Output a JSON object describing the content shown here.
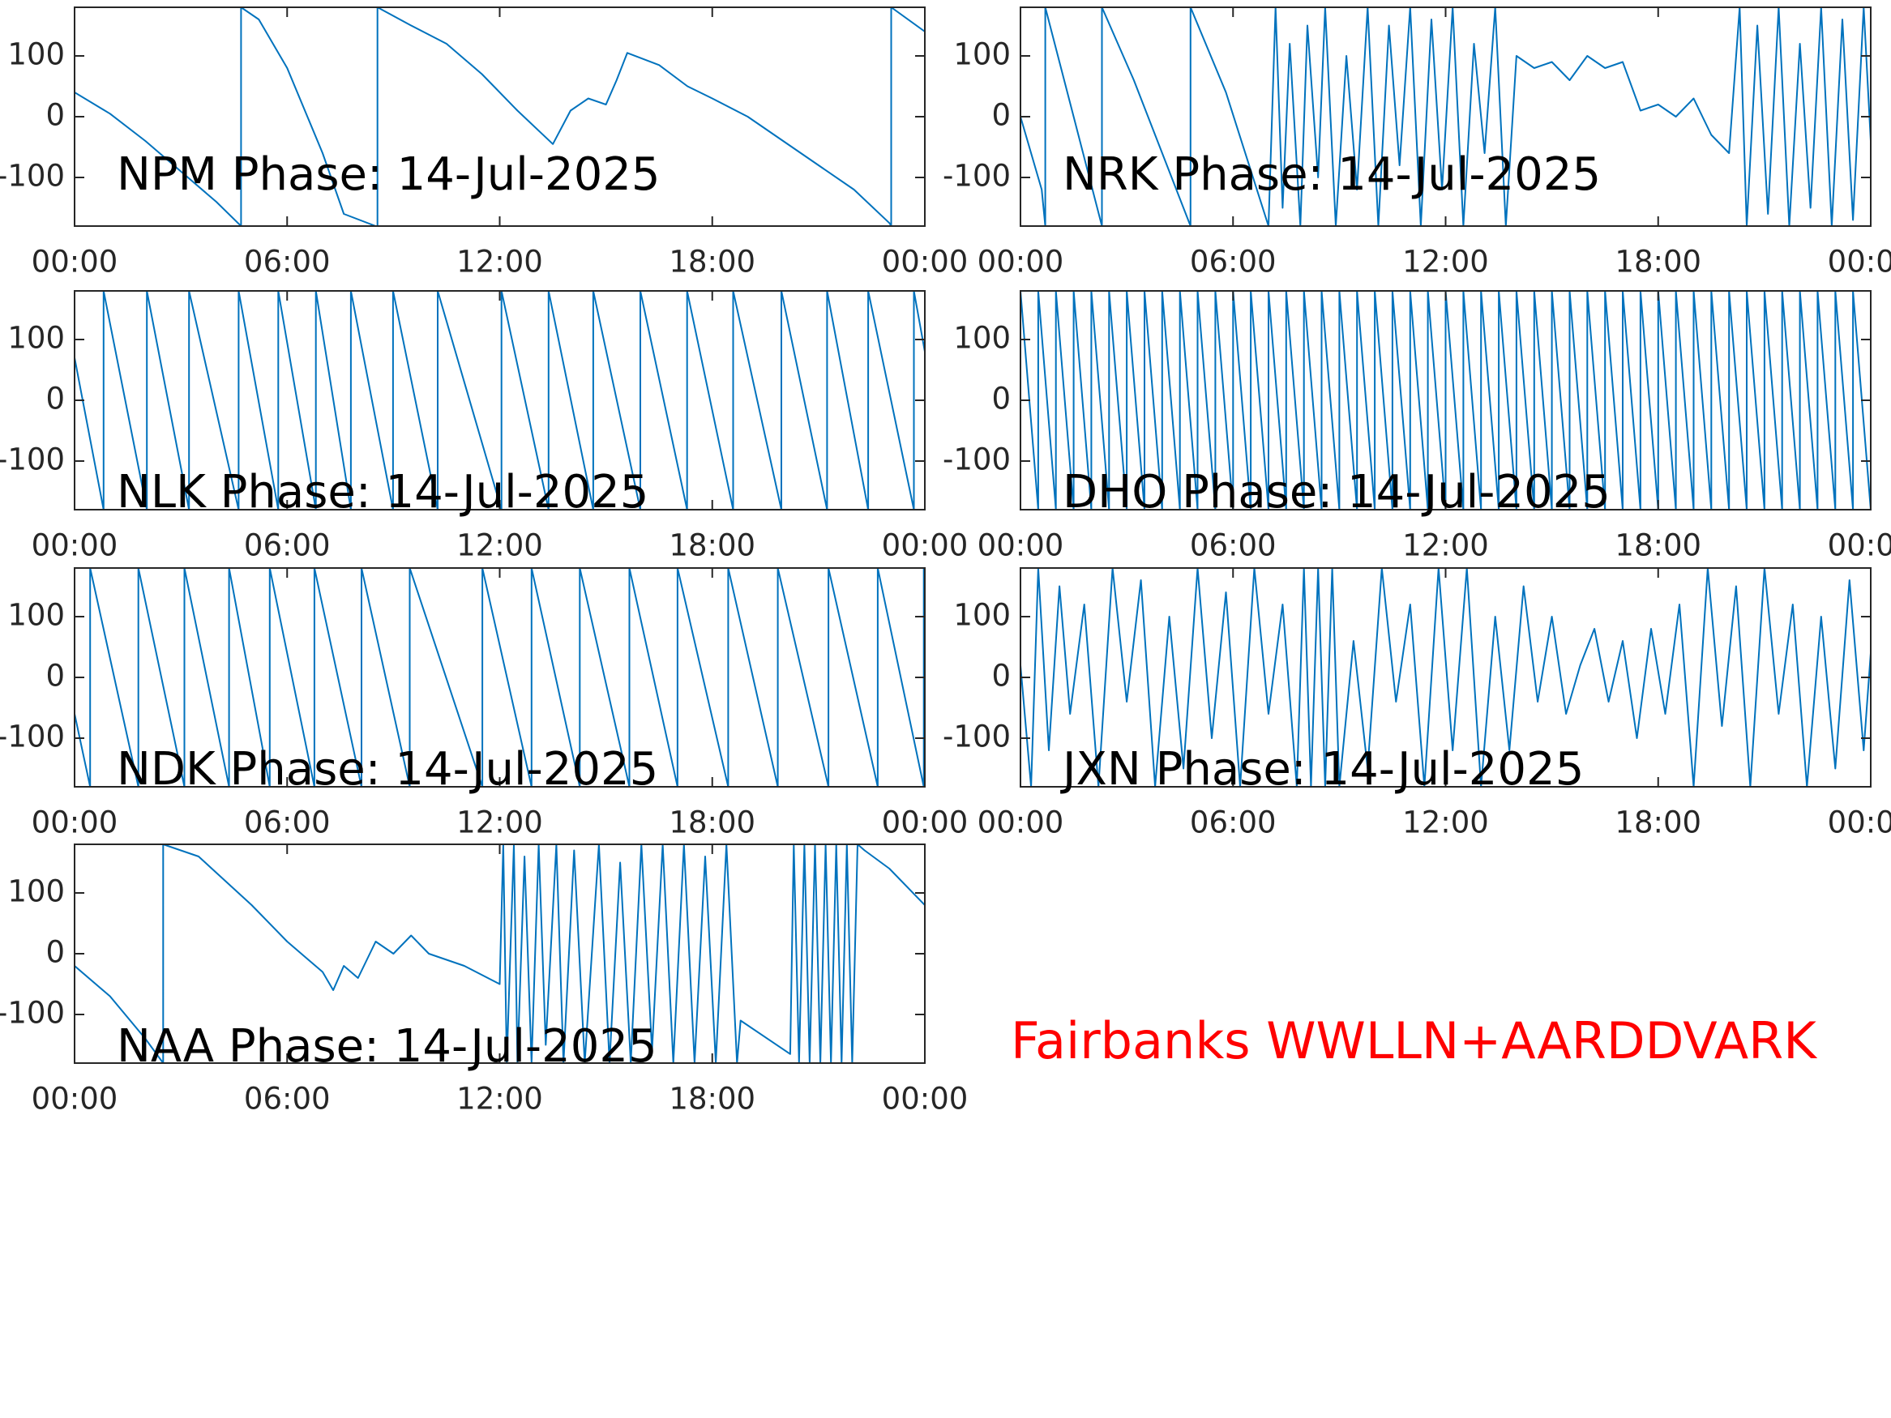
{
  "chart_data": [
    {
      "type": "line",
      "title": "NPM Phase: 14-Jul-2025",
      "color": "#0072bd",
      "xlim": [
        0,
        24
      ],
      "ylim": [
        -180,
        180
      ],
      "yticks": [
        -100,
        0,
        100
      ],
      "xticks": [
        {
          "value": 0,
          "label": "00:00"
        },
        {
          "value": 6,
          "label": "06:00"
        },
        {
          "value": 12,
          "label": "12:00"
        },
        {
          "value": 18,
          "label": "18:00"
        },
        {
          "value": 24,
          "label": "00:00"
        }
      ],
      "x": [
        0,
        1,
        2,
        3,
        4,
        4.7,
        4.7,
        5.2,
        6,
        7,
        7.6,
        8.5,
        8.55,
        8.55,
        9.5,
        10.5,
        11.5,
        12.5,
        13.5,
        14,
        14.5,
        15,
        15.3,
        15.6,
        16.5,
        17.3,
        18,
        19,
        20,
        21,
        22,
        23,
        23.05,
        23.05,
        24
      ],
      "values": [
        40,
        5,
        -40,
        -90,
        -140,
        -180,
        180,
        160,
        80,
        -60,
        -160,
        -180,
        -180,
        180,
        150,
        120,
        70,
        10,
        -45,
        10,
        30,
        20,
        60,
        105,
        85,
        50,
        30,
        0,
        -40,
        -80,
        -120,
        -175,
        -180,
        180,
        140
      ]
    },
    {
      "type": "line",
      "title": "NRK Phase: 14-Jul-2025",
      "color": "#0072bd",
      "xlim": [
        0,
        24
      ],
      "ylim": [
        -180,
        180
      ],
      "yticks": [
        -100,
        0,
        100
      ],
      "xticks": [
        {
          "value": 0,
          "label": "00:00"
        },
        {
          "value": 6,
          "label": "06:00"
        },
        {
          "value": 12,
          "label": "12:00"
        },
        {
          "value": 18,
          "label": "18:00"
        },
        {
          "value": 24,
          "label": "00:00"
        }
      ],
      "x": [
        0,
        0.6,
        0.7,
        0.7,
        1.5,
        2.3,
        2.3,
        3.2,
        4.8,
        4.8,
        5.8,
        7.0,
        7.2,
        7.4,
        7.6,
        7.9,
        8.1,
        8.4,
        8.6,
        8.9,
        9.2,
        9.5,
        9.8,
        10.1,
        10.4,
        10.7,
        11,
        11.3,
        11.6,
        11.9,
        12.2,
        12.5,
        12.8,
        13.1,
        13.4,
        13.7,
        14,
        14.5,
        15,
        15.5,
        16,
        16.5,
        17,
        17.5,
        18,
        18.5,
        19,
        19.5,
        20,
        20.3,
        20.5,
        20.8,
        21.1,
        21.4,
        21.7,
        22,
        22.3,
        22.6,
        22.9,
        23.2,
        23.5,
        23.8,
        24
      ],
      "values": [
        0,
        -120,
        -180,
        180,
        0,
        -180,
        180,
        60,
        -180,
        180,
        40,
        -180,
        180,
        -150,
        120,
        -180,
        150,
        -100,
        180,
        -180,
        100,
        -120,
        180,
        -180,
        150,
        -80,
        180,
        -180,
        160,
        -120,
        180,
        -180,
        120,
        -60,
        180,
        -180,
        100,
        80,
        90,
        60,
        100,
        80,
        90,
        10,
        20,
        0,
        30,
        -30,
        -60,
        180,
        -180,
        150,
        -160,
        180,
        -180,
        120,
        -150,
        180,
        -180,
        160,
        -170,
        180,
        -40
      ]
    },
    {
      "type": "line",
      "title": "NLK Phase: 14-Jul-2025",
      "color": "#0072bd",
      "xlim": [
        0,
        24
      ],
      "ylim": [
        -180,
        180
      ],
      "yticks": [
        -100,
        0,
        100
      ],
      "xticks": [
        {
          "value": 0,
          "label": "00:00"
        },
        {
          "value": 6,
          "label": "06:00"
        },
        {
          "value": 12,
          "label": "12:00"
        },
        {
          "value": 18,
          "label": "18:00"
        },
        {
          "value": 24,
          "label": "00:00"
        }
      ],
      "x": [
        0,
        0.82,
        0.82,
        2.04,
        2.04,
        3.23,
        3.23,
        4.63,
        4.63,
        5.75,
        5.75,
        6.81,
        6.81,
        7.8,
        7.8,
        8.99,
        8.99,
        10.25,
        10.25,
        12.05,
        12.05,
        13.38,
        13.38,
        14.64,
        14.64,
        15.97,
        15.97,
        17.29,
        17.29,
        18.59,
        18.59,
        19.95,
        19.95,
        21.24,
        21.24,
        22.4,
        22.4,
        23.69,
        23.69,
        24
      ],
      "values": [
        70,
        -180,
        180,
        -180,
        180,
        -180,
        180,
        -180,
        180,
        -180,
        180,
        -180,
        180,
        -180,
        180,
        -180,
        180,
        -180,
        180,
        -180,
        180,
        -180,
        180,
        -180,
        180,
        -180,
        180,
        -180,
        180,
        -180,
        180,
        -180,
        180,
        -180,
        180,
        -180,
        180,
        -180,
        180,
        80
      ]
    },
    {
      "type": "line",
      "title": "DHO Phase: 14-Jul-2025",
      "color": "#0072bd",
      "xlim": [
        0,
        24
      ],
      "ylim": [
        -180,
        180
      ],
      "yticks": [
        -100,
        0,
        100
      ],
      "xticks": [
        {
          "value": 0,
          "label": "00:00"
        },
        {
          "value": 6,
          "label": "06:00"
        },
        {
          "value": 12,
          "label": "12:00"
        },
        {
          "value": 18,
          "label": "18:00"
        },
        {
          "value": 24,
          "label": "00:00"
        }
      ],
      "x": [
        0,
        0.5,
        0.5,
        1,
        1,
        1.5,
        1.5,
        2,
        2,
        2.5,
        2.5,
        3,
        3,
        3.5,
        3.5,
        4,
        4,
        4.5,
        4.5,
        5,
        5,
        5.5,
        5.5,
        6,
        6,
        6.5,
        6.5,
        7,
        7,
        7.5,
        7.5,
        8,
        8,
        8.5,
        8.5,
        9,
        9,
        9.5,
        9.5,
        10,
        10,
        10.5,
        10.5,
        11,
        11,
        11.5,
        11.5,
        12,
        12,
        12.5,
        12.5,
        13,
        13,
        13.5,
        13.5,
        14,
        14,
        14.5,
        14.5,
        15,
        15,
        15.5,
        15.5,
        16,
        16,
        16.5,
        16.5,
        17,
        17,
        17.5,
        17.5,
        18,
        18,
        18.5,
        18.5,
        19,
        19,
        19.5,
        19.5,
        20,
        20,
        20.5,
        20.5,
        21,
        21,
        21.5,
        21.5,
        22,
        22,
        22.5,
        22.5,
        23,
        23,
        23.5,
        23.5,
        24
      ],
      "values": [
        180,
        -180,
        180,
        -180,
        180,
        -180,
        180,
        -180,
        180,
        -180,
        180,
        -180,
        180,
        -180,
        180,
        -180,
        180,
        -180,
        180,
        -180,
        180,
        -180,
        180,
        -180,
        180,
        -180,
        180,
        -180,
        180,
        -180,
        180,
        -180,
        180,
        -180,
        180,
        -180,
        180,
        -180,
        180,
        -180,
        180,
        -180,
        180,
        -180,
        180,
        -180,
        180,
        -180,
        180,
        -180,
        180,
        -180,
        180,
        -180,
        180,
        -180,
        180,
        -180,
        180,
        -180,
        180,
        -180,
        180,
        -180,
        180,
        -180,
        180,
        -180,
        180,
        -180,
        180,
        -180,
        180,
        -180,
        180,
        -180,
        180,
        -180,
        180,
        -180,
        180,
        -180,
        180,
        -180,
        180,
        -180,
        180,
        -180,
        180,
        -180,
        180,
        -180,
        180,
        -180,
        180,
        -180
      ]
    },
    {
      "type": "line",
      "title": "NDK Phase: 14-Jul-2025",
      "color": "#0072bd",
      "xlim": [
        0,
        24
      ],
      "ylim": [
        -180,
        180
      ],
      "yticks": [
        -100,
        0,
        100
      ],
      "xticks": [
        {
          "value": 0,
          "label": "00:00"
        },
        {
          "value": 6,
          "label": "06:00"
        },
        {
          "value": 12,
          "label": "12:00"
        },
        {
          "value": 18,
          "label": "18:00"
        },
        {
          "value": 24,
          "label": "00:00"
        }
      ],
      "x": [
        0,
        0.44,
        0.44,
        1.8,
        1.8,
        3.1,
        3.1,
        4.36,
        4.36,
        5.51,
        5.51,
        6.77,
        6.77,
        8.1,
        8.1,
        9.46,
        9.46,
        11.51,
        11.51,
        12.9,
        12.9,
        14.26,
        14.26,
        15.66,
        15.66,
        17.02,
        17.02,
        18.45,
        18.45,
        19.85,
        19.85,
        21.28,
        21.28,
        22.67,
        22.67,
        23.97,
        23.97,
        24
      ],
      "values": [
        -60,
        -180,
        180,
        -180,
        180,
        -180,
        180,
        -180,
        180,
        -180,
        180,
        -180,
        180,
        -180,
        180,
        -180,
        180,
        -180,
        180,
        -180,
        180,
        -180,
        180,
        -180,
        180,
        -180,
        180,
        -180,
        180,
        -180,
        180,
        -180,
        180,
        -180,
        180,
        -180,
        180,
        175
      ]
    },
    {
      "type": "line",
      "title": "JXN Phase: 14-Jul-2025",
      "color": "#0072bd",
      "xlim": [
        0,
        24
      ],
      "ylim": [
        -180,
        180
      ],
      "yticks": [
        -100,
        0,
        100
      ],
      "xticks": [
        {
          "value": 0,
          "label": "00:00"
        },
        {
          "value": 6,
          "label": "06:00"
        },
        {
          "value": 12,
          "label": "12:00"
        },
        {
          "value": 18,
          "label": "18:00"
        },
        {
          "value": 24,
          "label": "00:00"
        }
      ],
      "x": [
        0,
        0.3,
        0.5,
        0.8,
        1.1,
        1.4,
        1.8,
        2.2,
        2.6,
        3.0,
        3.4,
        3.8,
        4.2,
        4.6,
        5.0,
        5.4,
        5.8,
        6.2,
        6.6,
        7.0,
        7.4,
        7.8,
        8.0,
        8.2,
        8.4,
        8.6,
        8.8,
        9.0,
        9.4,
        9.8,
        10.2,
        10.6,
        11.0,
        11.4,
        11.8,
        12.2,
        12.6,
        13.0,
        13.4,
        13.8,
        14.2,
        14.6,
        15.0,
        15.4,
        15.8,
        16.2,
        16.6,
        17.0,
        17.4,
        17.8,
        18.2,
        18.6,
        19.0,
        19.4,
        19.8,
        20.2,
        20.6,
        21.0,
        21.4,
        21.8,
        22.2,
        22.6,
        23.0,
        23.4,
        23.8,
        24
      ],
      "values": [
        20,
        -180,
        180,
        -120,
        150,
        -60,
        120,
        -180,
        180,
        -40,
        160,
        -180,
        100,
        -150,
        180,
        -100,
        140,
        -180,
        180,
        -60,
        120,
        -180,
        180,
        -180,
        180,
        -180,
        180,
        -180,
        60,
        -150,
        180,
        -40,
        120,
        -180,
        180,
        -120,
        180,
        -180,
        100,
        -120,
        150,
        -40,
        100,
        -60,
        20,
        80,
        -40,
        60,
        -100,
        80,
        -60,
        120,
        -180,
        180,
        -80,
        150,
        -180,
        180,
        -60,
        120,
        -180,
        100,
        -150,
        160,
        -120,
        40
      ]
    },
    {
      "type": "line",
      "title": "NAA Phase: 14-Jul-2025",
      "color": "#0072bd",
      "xlim": [
        0,
        24
      ],
      "ylim": [
        -180,
        180
      ],
      "yticks": [
        -100,
        0,
        100
      ],
      "xticks": [
        {
          "value": 0,
          "label": "00:00"
        },
        {
          "value": 6,
          "label": "06:00"
        },
        {
          "value": 12,
          "label": "12:00"
        },
        {
          "value": 18,
          "label": "18:00"
        },
        {
          "value": 24,
          "label": "00:00"
        }
      ],
      "x": [
        0,
        1,
        2,
        2.5,
        2.5,
        3.5,
        5,
        6,
        7,
        7.3,
        7.6,
        8,
        8.5,
        9,
        9.5,
        10,
        11,
        12,
        12.1,
        12.2,
        12.4,
        12.5,
        12.7,
        12.9,
        13.1,
        13.3,
        13.6,
        13.8,
        14.1,
        14.4,
        14.8,
        15.1,
        15.4,
        15.7,
        16.0,
        16.3,
        16.6,
        16.9,
        17.2,
        17.5,
        17.8,
        18.1,
        18.4,
        18.7,
        18.8,
        20.2,
        20.3,
        20.45,
        20.6,
        20.75,
        20.9,
        21.05,
        21.2,
        21.35,
        21.5,
        21.65,
        21.8,
        21.95,
        22.1,
        22.3,
        23,
        24
      ],
      "values": [
        -20,
        -70,
        -140,
        -180,
        180,
        160,
        80,
        20,
        -30,
        -60,
        -20,
        -40,
        20,
        0,
        30,
        0,
        -20,
        -50,
        180,
        -180,
        180,
        -180,
        160,
        -180,
        180,
        -150,
        180,
        -180,
        170,
        -180,
        180,
        -180,
        150,
        -180,
        180,
        -160,
        180,
        -180,
        180,
        -180,
        160,
        -180,
        180,
        -180,
        -110,
        -165,
        180,
        -180,
        180,
        -180,
        180,
        -180,
        180,
        -180,
        180,
        -180,
        180,
        -180,
        180,
        170,
        140,
        80
      ]
    }
  ],
  "annotation": {
    "text": "Fairbanks WWLLN+AARDDVARK",
    "color": "#ff0000"
  }
}
